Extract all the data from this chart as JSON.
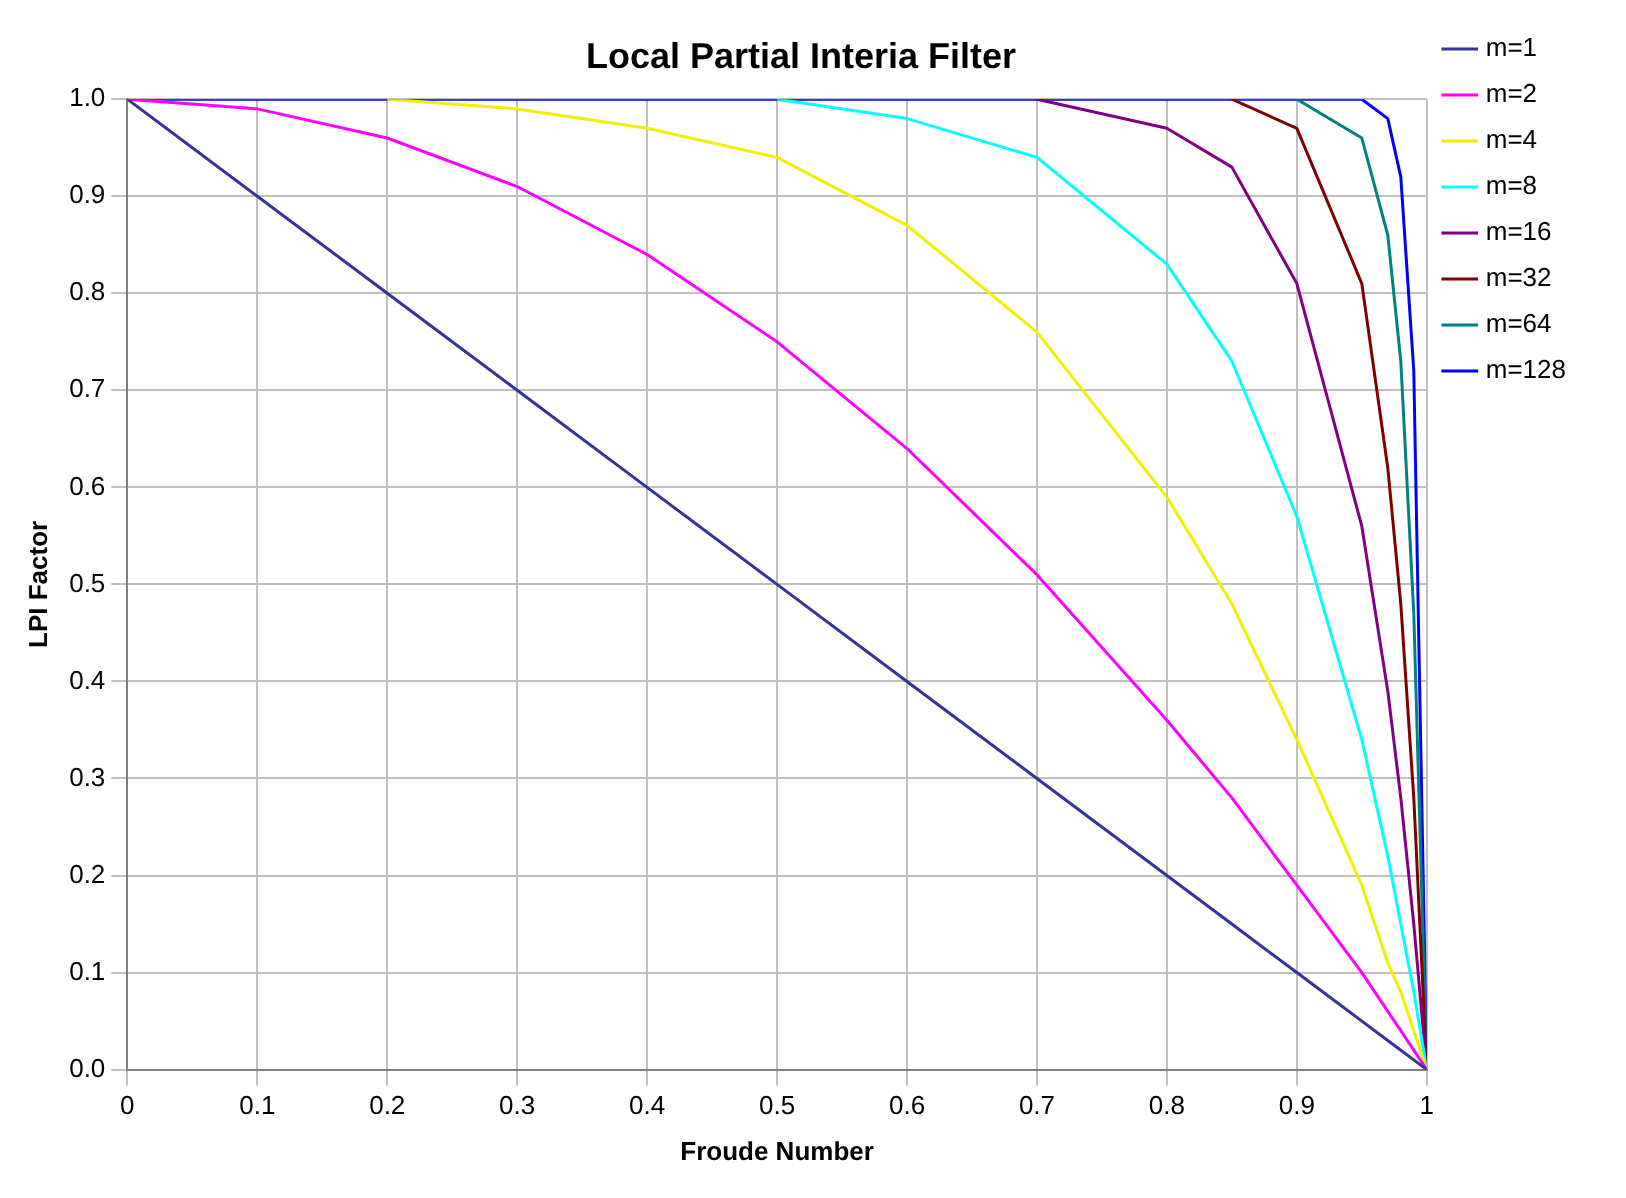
{
  "chart_data": {
    "type": "line",
    "title": "Local Partial Interia Filter",
    "xlabel": "Froude Number",
    "ylabel": "LPI Factor",
    "x": [
      0,
      0.1,
      0.2,
      0.3,
      0.4,
      0.5,
      0.6,
      0.7,
      0.8,
      0.85,
      0.9,
      0.95,
      0.97,
      0.98,
      0.99,
      1
    ],
    "series": [
      {
        "name": "m=1",
        "color": "#333399",
        "values": [
          1,
          0.9,
          0.8,
          0.7,
          0.6,
          0.5,
          0.4,
          0.3,
          0.2,
          0.15,
          0.1,
          0.05,
          0.03,
          0.02,
          0.01,
          0
        ]
      },
      {
        "name": "m=2",
        "color": "#ff00ff",
        "values": [
          1,
          0.99,
          0.96,
          0.91,
          0.84,
          0.75,
          0.64,
          0.51,
          0.36,
          0.28,
          0.19,
          0.1,
          0.06,
          0.04,
          0.02,
          0
        ]
      },
      {
        "name": "m=4",
        "color": "#f0f000",
        "x": [
          0.2,
          0.3,
          0.4,
          0.5,
          0.6,
          0.7,
          0.8,
          0.85,
          0.9,
          0.95,
          0.97,
          0.98,
          0.99,
          1
        ],
        "values": [
          1,
          0.99,
          0.97,
          0.94,
          0.87,
          0.76,
          0.59,
          0.48,
          0.34,
          0.19,
          0.11,
          0.08,
          0.04,
          0
        ]
      },
      {
        "name": "m=8",
        "color": "#00ffff",
        "x": [
          0.5,
          0.6,
          0.7,
          0.8,
          0.85,
          0.9,
          0.95,
          0.97,
          0.98,
          0.99,
          1
        ],
        "values": [
          1,
          0.98,
          0.94,
          0.83,
          0.73,
          0.57,
          0.34,
          0.22,
          0.15,
          0.08,
          0
        ]
      },
      {
        "name": "m=16",
        "color": "#800080",
        "x": [
          0.7,
          0.8,
          0.85,
          0.9,
          0.95,
          0.97,
          0.98,
          0.99,
          1
        ],
        "values": [
          1,
          0.97,
          0.93,
          0.81,
          0.56,
          0.39,
          0.28,
          0.15,
          0
        ]
      },
      {
        "name": "m=32",
        "color": "#800000",
        "x": [
          0.85,
          0.9,
          0.95,
          0.97,
          0.98,
          0.99,
          1
        ],
        "values": [
          1,
          0.97,
          0.81,
          0.62,
          0.48,
          0.28,
          0
        ]
      },
      {
        "name": "m=64",
        "color": "#008080",
        "x": [
          0.9,
          0.95,
          0.97,
          0.98,
          0.99,
          1
        ],
        "values": [
          1,
          0.96,
          0.86,
          0.73,
          0.47,
          0
        ]
      },
      {
        "name": "m=128",
        "color": "#0000ff",
        "values": [
          1,
          1,
          1,
          1,
          1,
          1,
          1,
          1,
          1,
          1,
          1,
          1,
          0.98,
          0.92,
          0.72,
          0
        ]
      }
    ],
    "xlim": [
      0,
      1
    ],
    "xticks": [
      0,
      0.1,
      0.2,
      0.3,
      0.4,
      0.5,
      0.6,
      0.7,
      0.8,
      0.9,
      1
    ],
    "ylim": [
      0,
      1
    ],
    "yticks": [
      {
        "value": 0,
        "label": "0.0"
      },
      0.1,
      0.2,
      0.3,
      0.4,
      0.5,
      0.6,
      0.7,
      0.8,
      0.9,
      {
        "value": 1,
        "label": "1.0"
      }
    ],
    "grid": true,
    "legend": "right",
    "marker": "none",
    "line_style": "solid"
  }
}
